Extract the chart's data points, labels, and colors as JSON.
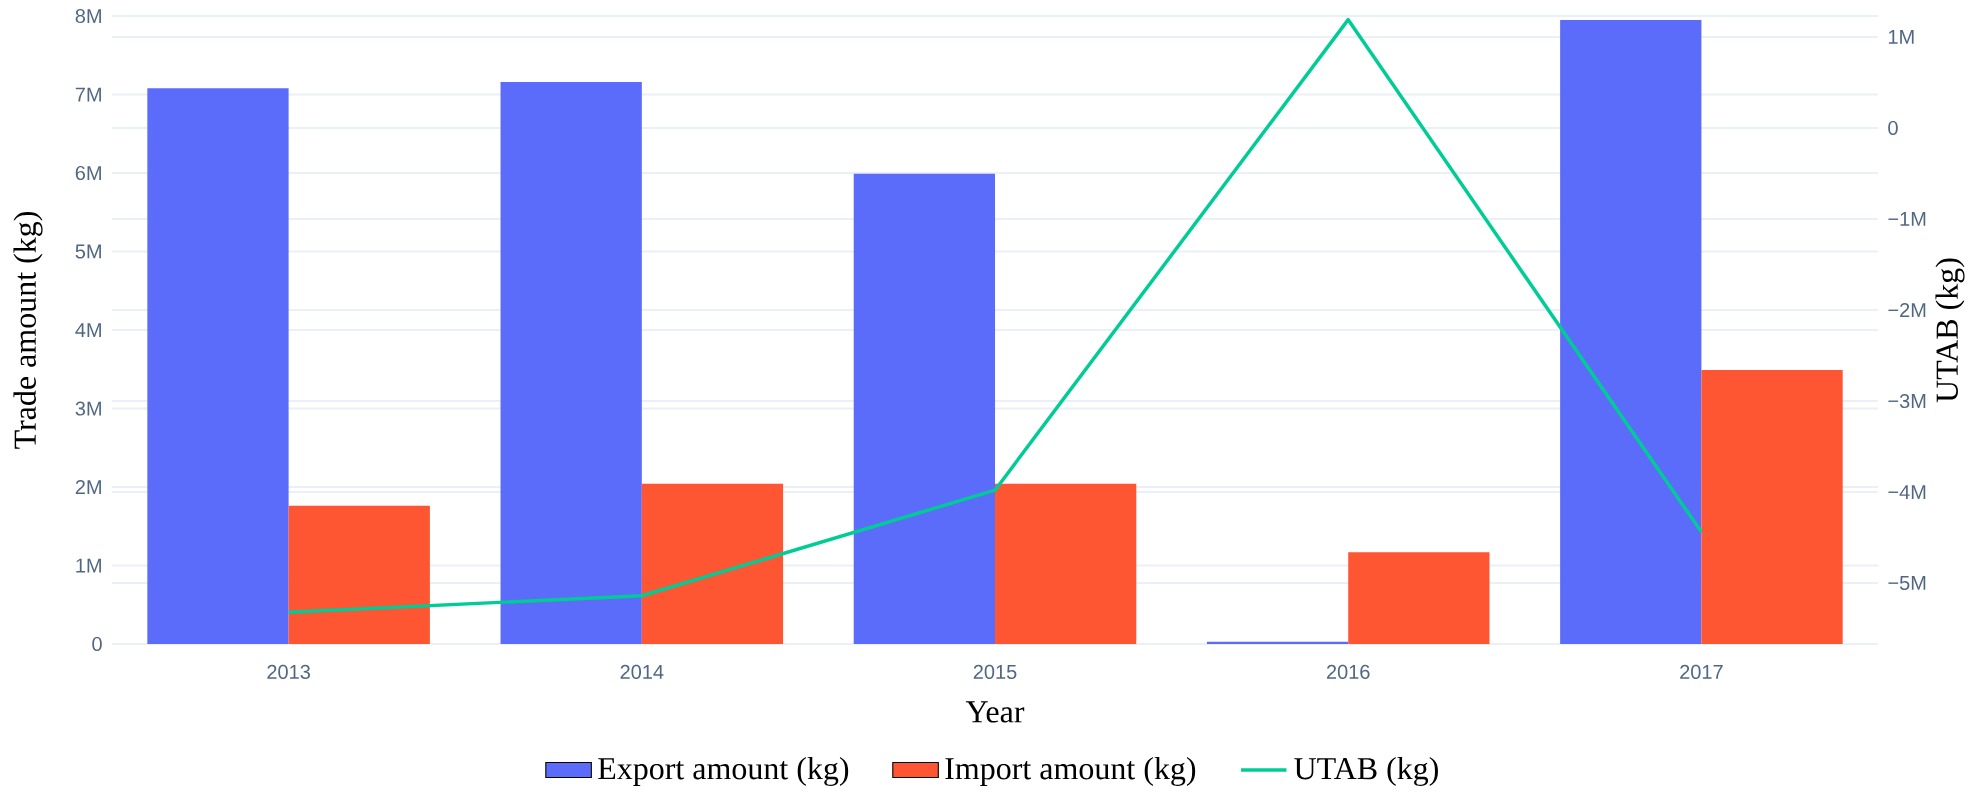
{
  "chart_data": {
    "type": "bar",
    "categories": [
      "2013",
      "2014",
      "2015",
      "2016",
      "2017"
    ],
    "xlabel": "Year",
    "ylabel": "Trade amount (kg)",
    "y2label": "UTAB (kg)",
    "ylim": [
      0,
      8000000
    ],
    "yticks": [
      0,
      {
        "value": 1000000,
        "label": "1M"
      },
      {
        "value": 2000000,
        "label": "2M"
      },
      {
        "value": 3000000,
        "label": "3M"
      },
      {
        "value": 4000000,
        "label": "4M"
      },
      {
        "value": 5000000,
        "label": "5M"
      },
      {
        "value": 6000000,
        "label": "6M"
      },
      {
        "value": 7000000,
        "label": "7M"
      },
      {
        "value": 8000000,
        "label": "8M"
      }
    ],
    "y2lim": [
      -5670000,
      1230000
    ],
    "y2ticks": [
      {
        "value": -5000000,
        "label": "−5M"
      },
      {
        "value": -4000000,
        "label": "−4M"
      },
      {
        "value": -3000000,
        "label": "−3M"
      },
      {
        "value": -2000000,
        "label": "−2M"
      },
      {
        "value": -1000000,
        "label": "−1M"
      },
      0,
      {
        "value": 1000000,
        "label": "1M"
      }
    ],
    "series": [
      {
        "name": "Export amount (kg)",
        "color": "#5b6cfb",
        "values": [
          7080000,
          7160000,
          5990000,
          30000,
          7950000
        ]
      },
      {
        "name": "Import amount (kg)",
        "color": "#fe5533",
        "values": [
          1760000,
          2040000,
          2040000,
          1170000,
          3490000
        ]
      },
      {
        "name": "UTAB (kg)",
        "type": "line",
        "axis": "y2",
        "color": "#00cc96",
        "values": [
          -5320000,
          -5140000,
          -3980000,
          1190000,
          -4440000
        ]
      }
    ],
    "grid": true,
    "legend": "bottom"
  }
}
